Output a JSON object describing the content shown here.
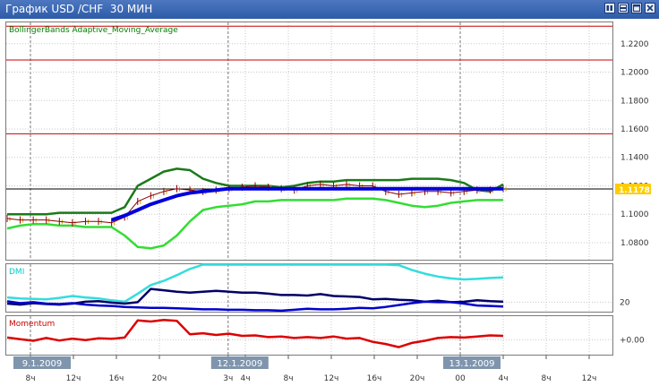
{
  "window": {
    "title": "График USD /CHF  30 МИН",
    "buttons": [
      "restore",
      "tile",
      "maximize",
      "close"
    ]
  },
  "chart_data": [
    {
      "type": "line",
      "panel": "price",
      "title": "BollingerBands Adaptive_Moving_Average",
      "title_color": "#008000",
      "ylim": [
        1.068,
        1.235
      ],
      "y_ticks": [
        "1.2200",
        "1.2000",
        "1.1800",
        "1.1600",
        "1.1400",
        "1.1200",
        "1.1000",
        "1.0800"
      ],
      "current_price": "1.1178",
      "current_price_value": 1.1178,
      "current_price_color": "#ffcc00",
      "horizontal_levels": [
        1.2323,
        1.2085,
        1.1566
      ],
      "level_color": "#cc0000",
      "grid": true,
      "series": [
        {
          "role": "bollinger-upper",
          "color": "#1a7a1a",
          "values": [
            1.1,
            1.1,
            1.1,
            1.1,
            1.101,
            1.101,
            1.101,
            1.101,
            1.101,
            1.105,
            1.12,
            1.125,
            1.13,
            1.132,
            1.131,
            1.125,
            1.122,
            1.12,
            1.12,
            1.12,
            1.12,
            1.119,
            1.12,
            1.122,
            1.123,
            1.123,
            1.124,
            1.124,
            1.124,
            1.124,
            1.124,
            1.125,
            1.125,
            1.125,
            1.124,
            1.122,
            1.117,
            1.116,
            1.121
          ]
        },
        {
          "role": "bollinger-lower",
          "color": "#33dd33",
          "values": [
            1.09,
            1.092,
            1.093,
            1.093,
            1.092,
            1.092,
            1.091,
            1.091,
            1.091,
            1.085,
            1.077,
            1.076,
            1.078,
            1.085,
            1.095,
            1.103,
            1.105,
            1.106,
            1.107,
            1.109,
            1.109,
            1.11,
            1.11,
            1.11,
            1.11,
            1.11,
            1.111,
            1.111,
            1.111,
            1.11,
            1.108,
            1.106,
            1.105,
            1.106,
            1.108,
            1.109,
            1.11,
            1.11,
            1.11
          ]
        },
        {
          "role": "adaptive-moving-average",
          "color": "#0000dd",
          "values": [
            null,
            null,
            null,
            null,
            null,
            null,
            null,
            null,
            1.096,
            1.099,
            1.103,
            1.107,
            1.11,
            1.113,
            1.115,
            1.116,
            1.117,
            1.118,
            1.118,
            1.118,
            1.118,
            1.118,
            1.118,
            1.118,
            1.118,
            1.118,
            1.118,
            1.118,
            1.118,
            1.118,
            1.118,
            1.118,
            1.118,
            1.118,
            1.118,
            1.118,
            1.118,
            1.118,
            1.118
          ]
        },
        {
          "role": "price-bars",
          "color": "#8b0000",
          "values": [
            1.097,
            1.096,
            1.096,
            1.096,
            1.095,
            1.094,
            1.095,
            1.095,
            1.094,
            1.098,
            1.109,
            1.113,
            1.116,
            1.118,
            1.117,
            1.116,
            1.117,
            1.118,
            1.119,
            1.12,
            1.119,
            1.118,
            1.117,
            1.12,
            1.121,
            1.12,
            1.121,
            1.12,
            1.12,
            1.116,
            1.114,
            1.115,
            1.116,
            1.116,
            1.115,
            1.116,
            1.117,
            1.117,
            1.118
          ]
        }
      ]
    },
    {
      "type": "line",
      "panel": "dmi",
      "title": "DMI",
      "title_color": "#00cccc",
      "ylim": [
        0,
        100
      ],
      "y_ticks": [
        "20"
      ],
      "y_tick_values": [
        20
      ],
      "series": [
        {
          "role": "plus-di",
          "color": "#33dddd",
          "values": [
            30,
            28,
            27,
            26,
            29,
            33,
            30,
            28,
            24,
            21,
            38,
            56,
            65,
            77,
            90,
            100,
            100,
            100,
            100,
            100,
            100,
            100,
            100,
            100,
            100,
            100,
            100,
            100,
            100,
            100,
            98,
            88,
            80,
            74,
            70,
            68,
            69,
            71,
            72
          ]
        },
        {
          "role": "minus-di",
          "color": "#000066",
          "values": [
            17,
            15,
            18,
            16,
            15,
            17,
            21,
            22,
            19,
            17,
            20,
            48,
            45,
            42,
            40,
            42,
            44,
            42,
            40,
            40,
            38,
            35,
            35,
            34,
            37,
            33,
            32,
            31,
            26,
            27,
            25,
            24,
            21,
            23,
            20,
            21,
            24,
            22,
            21
          ]
        },
        {
          "role": "adx",
          "color": "#0000cc",
          "values": [
            22,
            18,
            20,
            17,
            16,
            18,
            15,
            13,
            12,
            10,
            9,
            8,
            8,
            7,
            6,
            5,
            5,
            4,
            4,
            3,
            3,
            2,
            4,
            6,
            5,
            5,
            6,
            8,
            7,
            10,
            14,
            18,
            21,
            20,
            20,
            17,
            13,
            12,
            11
          ]
        }
      ]
    },
    {
      "type": "line",
      "panel": "momentum",
      "title": "Momentum",
      "title_color": "#cc0000",
      "y_ticks": [
        "+0.00"
      ],
      "y_tick_values": [
        0
      ],
      "ylim": [
        -0.007,
        0.011
      ],
      "series": [
        {
          "role": "momentum",
          "color": "#dd0000",
          "values": [
            0.001,
            0.0002,
            -0.0005,
            0.0008,
            -0.0004,
            0.0005,
            -0.0002,
            0.0006,
            0.0004,
            0.001,
            0.009,
            0.0085,
            0.0092,
            0.0088,
            0.0025,
            0.003,
            0.0022,
            0.0028,
            0.0018,
            0.002,
            0.0012,
            0.0015,
            0.0008,
            0.0012,
            0.0008,
            0.0015,
            0.0005,
            0.0008,
            -0.001,
            -0.002,
            -0.0035,
            -0.0015,
            -0.0005,
            0.0008,
            0.0012,
            0.001,
            0.0015,
            0.002,
            0.0018
          ]
        }
      ]
    }
  ],
  "x_axis": {
    "ticks": [
      "8ч",
      "12ч",
      "16ч",
      "20ч",
      "3ч",
      "4ч",
      "8ч",
      "12ч",
      "16ч",
      "20ч",
      "00",
      "4ч",
      "8ч",
      "12ч"
    ],
    "tick_index": [
      0,
      1,
      2,
      3,
      4.6,
      5,
      6,
      7,
      8,
      9,
      10,
      11,
      12,
      13
    ],
    "date_labels": [
      "9.1.2009",
      "12.1.2009",
      "13.1.2009"
    ],
    "date_index": [
      0,
      4.6,
      10
    ]
  }
}
